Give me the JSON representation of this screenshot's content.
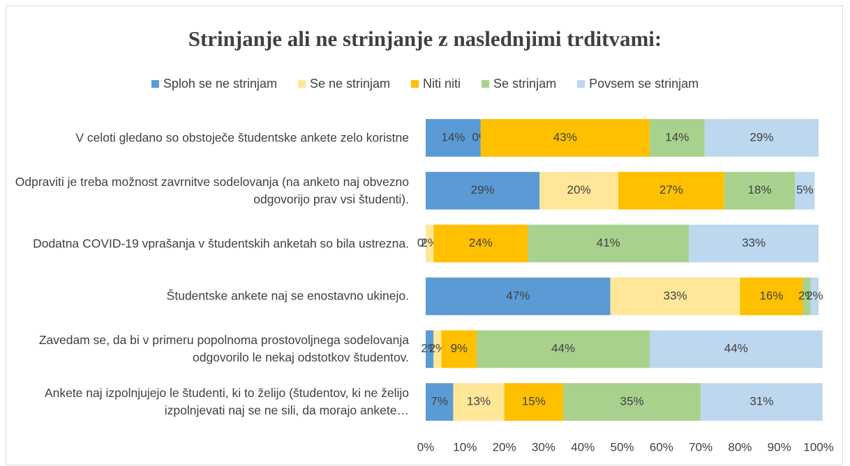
{
  "chart_data": {
    "type": "stacked_bar_horizontal",
    "title": "Strinjanje ali ne strinjanje z naslednjimi trditvami:",
    "categories": [
      "V celoti gledano so obstoječe študentske ankete zelo koristne",
      "Odpraviti je treba možnost zavrnitve sodelovanja (na anketo naj obvezno odgovorijo prav vsi študenti).",
      "Dodatna COVID-19 vprašanja v študentskih anketah so bila ustrezna.",
      "Študentske ankete naj se enostavno ukinejo.",
      "Zavedam se, da bi v primeru popolnoma prostovoljnega sodelovanja odgovorilo le nekaj odstotkov študentov.",
      "Ankete naj izpolnjujejo le študenti, ki to želijo (študentov, ki ne želijo izpolnjevati naj se ne sili, da morajo ankete…"
    ],
    "series": [
      {
        "name": "Sploh se ne strinjam",
        "color": "#5b9bd5",
        "values": [
          14,
          29,
          0,
          47,
          2,
          7
        ],
        "value_labels": [
          "14%",
          "29%",
          "0%",
          "47%",
          "2%",
          "7%"
        ]
      },
      {
        "name": "Se ne strinjam",
        "color": "#ffe699",
        "values": [
          0,
          20,
          2,
          33,
          2,
          13
        ],
        "value_labels": [
          "0%",
          "20%",
          "2%",
          "33%",
          "2%",
          "13%"
        ]
      },
      {
        "name": "Niti niti",
        "color": "#ffc000",
        "values": [
          43,
          27,
          24,
          16,
          9,
          15
        ],
        "value_labels": [
          "43%",
          "27%",
          "24%",
          "16%",
          "9%",
          "15%"
        ]
      },
      {
        "name": "Se strinjam",
        "color": "#a9d18e",
        "values": [
          14,
          18,
          41,
          2,
          44,
          35
        ],
        "value_labels": [
          "14%",
          "18%",
          "41%",
          "2%",
          "44%",
          "35%"
        ]
      },
      {
        "name": "Povsem se strinjam",
        "color": "#bdd7ee",
        "values": [
          29,
          5,
          33,
          2,
          44,
          31
        ],
        "value_labels": [
          "29%",
          "5%",
          "33%",
          "2%",
          "44%",
          "31%"
        ]
      }
    ],
    "xlim": [
      0,
      100
    ],
    "xticks": [
      {
        "value": 0,
        "label": "0%"
      },
      {
        "value": 10,
        "label": "10%"
      },
      {
        "value": 20,
        "label": "20%"
      },
      {
        "value": 30,
        "label": "30%"
      },
      {
        "value": 40,
        "label": "40%"
      },
      {
        "value": 50,
        "label": "50%"
      },
      {
        "value": 60,
        "label": "60%"
      },
      {
        "value": 70,
        "label": "70%"
      },
      {
        "value": 80,
        "label": "80%"
      },
      {
        "value": 90,
        "label": "90%"
      },
      {
        "value": 100,
        "label": "100%"
      }
    ],
    "legend": "top"
  }
}
